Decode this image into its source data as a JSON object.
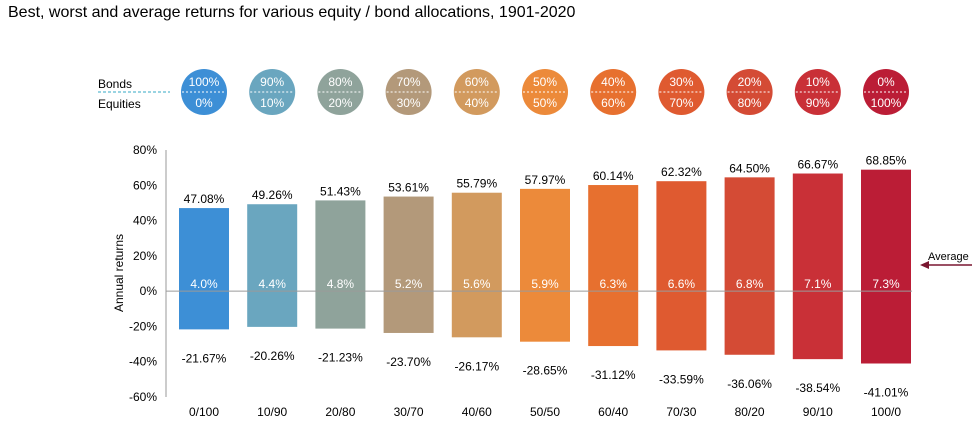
{
  "title": "Best, worst and average returns for various equity / bond allocations, 1901-2020",
  "legend": {
    "bonds_label": "Bonds",
    "equities_label": "Equities",
    "average_label": "Average"
  },
  "chart_data": {
    "type": "bar",
    "title": "Best, worst and average returns for various equity / bond allocations, 1901-2020",
    "ylabel": "Annual returns",
    "ylim": [
      -60,
      80
    ],
    "yticks": [
      -60,
      -40,
      -20,
      0,
      20,
      40,
      60,
      80
    ],
    "ytick_labels": [
      "-60%",
      "-40%",
      "-20%",
      "0%",
      "20%",
      "40%",
      "60%",
      "80%"
    ],
    "categories": [
      "0/100",
      "10/90",
      "20/80",
      "30/70",
      "40/60",
      "50/50",
      "60/40",
      "70/30",
      "80/20",
      "90/10",
      "100/0"
    ],
    "bonds_pct": [
      "100%",
      "90%",
      "80%",
      "70%",
      "60%",
      "50%",
      "40%",
      "30%",
      "20%",
      "10%",
      "0%"
    ],
    "equities_pct": [
      "0%",
      "10%",
      "20%",
      "30%",
      "40%",
      "50%",
      "60%",
      "70%",
      "80%",
      "90%",
      "100%"
    ],
    "series": [
      {
        "name": "Best",
        "values": [
          47.08,
          49.26,
          51.43,
          53.61,
          55.79,
          57.97,
          60.14,
          62.32,
          64.5,
          66.67,
          68.85
        ],
        "labels": [
          "47.08%",
          "49.26%",
          "51.43%",
          "53.61%",
          "55.79%",
          "57.97%",
          "60.14%",
          "62.32%",
          "64.50%",
          "66.67%",
          "68.85%"
        ]
      },
      {
        "name": "Worst",
        "values": [
          -21.67,
          -20.26,
          -21.23,
          -23.7,
          -26.17,
          -28.65,
          -31.12,
          -33.59,
          -36.06,
          -38.54,
          -41.01
        ],
        "labels": [
          "-21.67%",
          "-20.26%",
          "-21.23%",
          "-23.70%",
          "-26.17%",
          "-28.65%",
          "-31.12%",
          "-33.59%",
          "-36.06%",
          "-38.54%",
          "-41.01%"
        ]
      },
      {
        "name": "Average",
        "values": [
          4.0,
          4.4,
          4.8,
          5.2,
          5.6,
          5.9,
          6.3,
          6.6,
          6.8,
          7.1,
          7.3
        ],
        "labels": [
          "4.0%",
          "4.4%",
          "4.8%",
          "5.2%",
          "5.6%",
          "5.9%",
          "6.3%",
          "6.6%",
          "6.8%",
          "7.1%",
          "7.3%"
        ]
      }
    ],
    "colors": [
      "#3d8fd6",
      "#6aa6bf",
      "#8fa39b",
      "#b3997a",
      "#d29a5e",
      "#ec8a3a",
      "#e7702f",
      "#df5a30",
      "#d44b35",
      "#c93037",
      "#bb1d36"
    ],
    "grid": false,
    "legend_position": "top"
  }
}
